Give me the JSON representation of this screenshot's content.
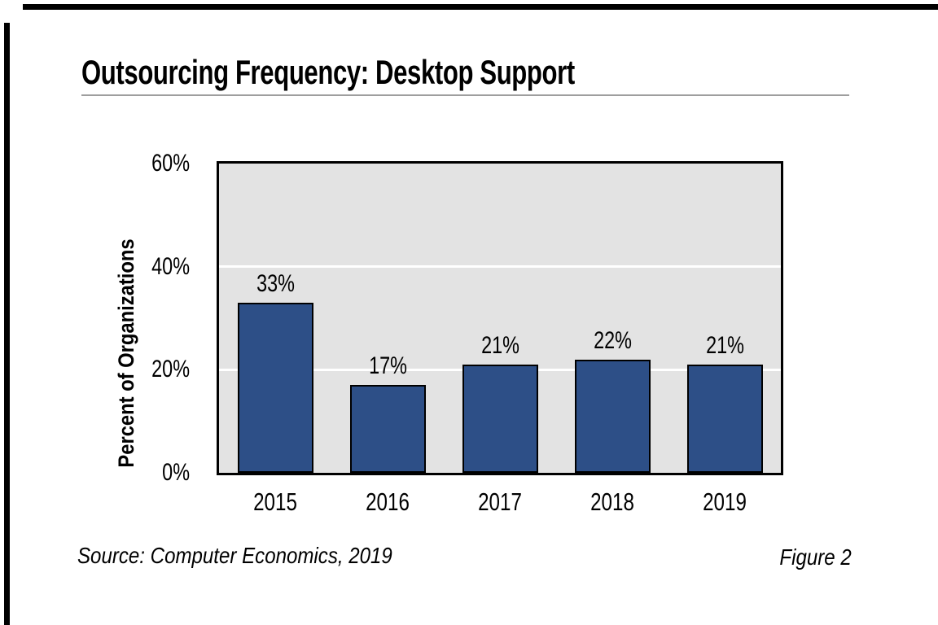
{
  "brand": {
    "frame_color": "#000000"
  },
  "header": {
    "title": "Outsourcing Frequency: Desktop Support"
  },
  "chart_data": {
    "type": "bar",
    "title": "Outsourcing Frequency: Desktop Support",
    "categories": [
      "2015",
      "2016",
      "2017",
      "2018",
      "2019"
    ],
    "values": [
      33,
      17,
      21,
      22,
      21
    ],
    "bar_labels": [
      "33%",
      "17%",
      "21%",
      "22%",
      "21%"
    ],
    "xlabel": "",
    "ylabel": "Percent of Organizations",
    "ylim": [
      0,
      60
    ],
    "yticks": [
      0,
      20,
      40,
      60
    ],
    "ytick_labels": [
      "0%",
      "20%",
      "40%",
      "60%"
    ],
    "gridlines": [
      20,
      40
    ],
    "legend": "none",
    "colors": {
      "bar_fill": "#2D4F87",
      "bar_border": "#000000",
      "plot_bg": "#E3E3E3",
      "plot_border": "#000000",
      "gridline": "#FFFFFF",
      "text": "#000000",
      "title_underline": "#9E9E9E"
    }
  },
  "footer": {
    "source": "Source: Computer Economics, 2019",
    "figure_label": "Figure 2"
  }
}
